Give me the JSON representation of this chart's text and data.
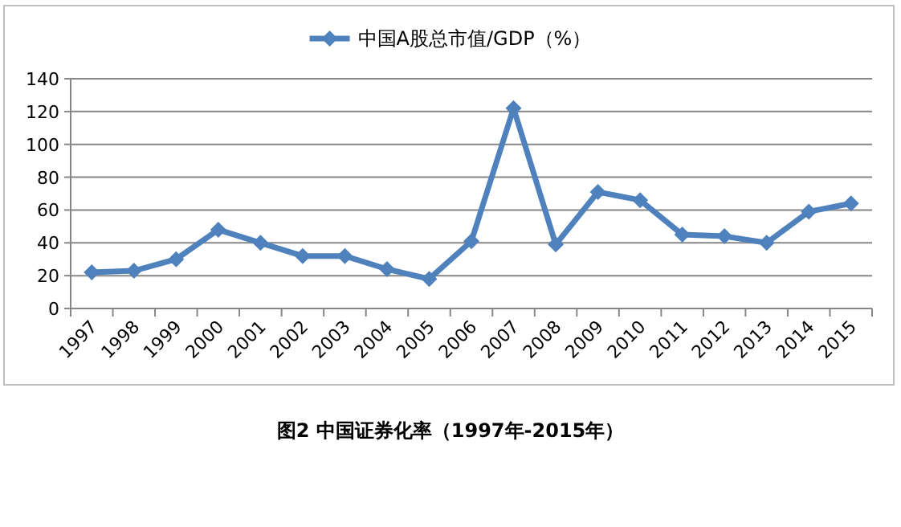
{
  "chart_data": {
    "type": "line",
    "title": "图2 中国证券化率（1997年-2015年）",
    "categories": [
      "1997",
      "1998",
      "1999",
      "2000",
      "2001",
      "2002",
      "2003",
      "2004",
      "2005",
      "2006",
      "2007",
      "2008",
      "2009",
      "2010",
      "2011",
      "2012",
      "2013",
      "2014",
      "2015"
    ],
    "series": [
      {
        "name": "中国A股总市值/GDP（%）",
        "color": "#4f81bd",
        "values": [
          22,
          23,
          30,
          48,
          40,
          32,
          32,
          24,
          18,
          41,
          122,
          39,
          71,
          66,
          45,
          44,
          40,
          59,
          64
        ]
      }
    ],
    "ylim": [
      0,
      140
    ],
    "yticks": [
      0,
      20,
      40,
      60,
      80,
      100,
      120,
      140
    ],
    "grid": "y",
    "legend": "top",
    "marker": "diamond",
    "line_style": "solid"
  }
}
